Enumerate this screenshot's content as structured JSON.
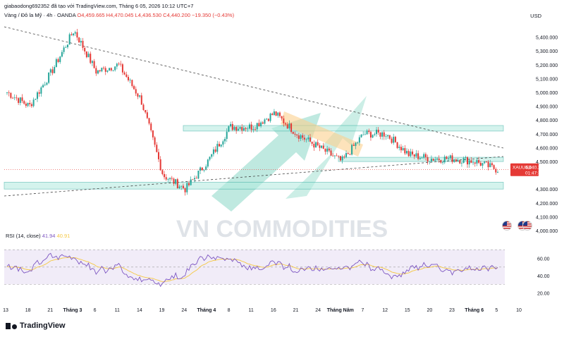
{
  "header": {
    "publisher": "giabaodong692352 đã tạo với TradingView.com, Tháng 6 05, 2026 10:12 UTC+7",
    "symbol_line": "Vàng / Đô la Mỹ · 4h · OANDA",
    "ohlc": "O4,459.665  H4,470.045  L4,436.530  C4,440.200  −19.350 (−0.43%)"
  },
  "currency": "USD",
  "watermark": "VN COMMODITIES",
  "price_tag": {
    "symbol": "XAUUSD",
    "price": "4,440.200",
    "countdown": "01:47:33"
  },
  "rsi": {
    "label": "RSI (14, close)",
    "value1": "41.94",
    "value2": "40.91"
  },
  "footer": {
    "brand": "TradingView"
  },
  "colors": {
    "up": "#26a69a",
    "down": "#e53935",
    "zone": "#b2ebdf",
    "rsi": "#7e57c2",
    "rsi_ma": "#f5c842",
    "arrow": "#7fd4c1"
  },
  "chart_data": [
    {
      "type": "line",
      "subtype": "candlestick_approx",
      "series": [
        {
          "name": "XAUUSD",
          "x": [
            "Tháng 2 13",
            "Tháng 2 18",
            "Tháng 2 21",
            "Tháng 3",
            "Tháng 3 6",
            "Tháng 3 11",
            "Tháng 3 14",
            "Tháng 3 19",
            "Tháng 3 24",
            "Tháng 4",
            "Tháng 4 8",
            "Tháng 4 11",
            "Tháng 4 16",
            "Tháng 4 21",
            "Tháng 4 24",
            "Tháng Năm",
            "Tháng 5 7",
            "Tháng 5 12",
            "Tháng 5 15",
            "Tháng 5 20",
            "Tháng 5 23",
            "Tháng 6",
            "Tháng 6 5"
          ],
          "values": [
            5000,
            4900,
            5150,
            5450,
            5150,
            5200,
            4950,
            4400,
            4300,
            4500,
            4750,
            4750,
            4850,
            4700,
            4600,
            4500,
            4700,
            4700,
            4550,
            4520,
            4520,
            4500,
            4440
          ]
        }
      ],
      "ylim": [
        4000,
        5500
      ],
      "y_ticks": [
        "5,400.000",
        "5,300.000",
        "5,200.000",
        "5,100.000",
        "5,000.000",
        "4,900.000",
        "4,800.000",
        "4,700.000",
        "4,600.000",
        "4,500.000",
        "4,300.000",
        "4,200.000",
        "4,100.000",
        "4,000.000"
      ],
      "x_ticks": [
        "13",
        "18",
        "21",
        "Tháng 3",
        "6",
        "11",
        "14",
        "19",
        "24",
        "Tháng 4",
        "8",
        "11",
        "16",
        "21",
        "24",
        "Tháng Năm",
        "7",
        "12",
        "15",
        "20",
        "23",
        "Tháng 6",
        "5",
        "10"
      ],
      "zones": [
        [
          4720,
          4760
        ],
        [
          4500,
          4530
        ],
        [
          4300,
          4350
        ]
      ],
      "last_price": 4440.2
    },
    {
      "type": "line",
      "title": "RSI (14, close)",
      "ylim": [
        10,
        75
      ],
      "y_ticks": [
        "60.00",
        "40.00",
        "20.00"
      ],
      "band": [
        30,
        70
      ],
      "mid": 50
    }
  ]
}
